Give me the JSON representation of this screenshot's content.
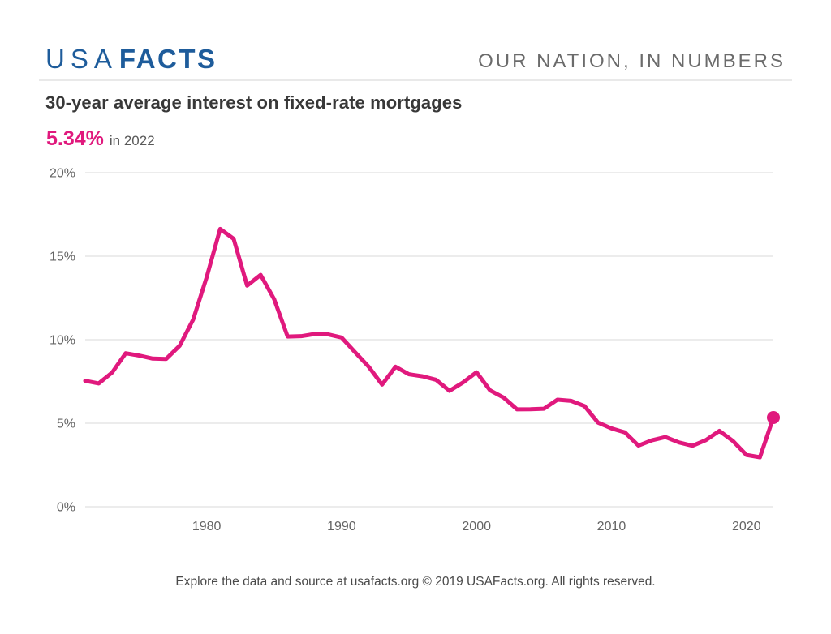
{
  "header": {
    "logo": {
      "part1": "USA",
      "part2": "FACTS"
    },
    "tagline": "OUR NATION, IN NUMBERS"
  },
  "chart": {
    "title": "30-year average interest on fixed-rate mortgages",
    "stat_value": "5.34%",
    "stat_context": "in 2022"
  },
  "chart_data": {
    "type": "line",
    "title": "30-year average interest on fixed-rate mortgages",
    "unit": "%",
    "x": [
      1971,
      1972,
      1973,
      1974,
      1975,
      1976,
      1977,
      1978,
      1979,
      1980,
      1981,
      1982,
      1983,
      1984,
      1985,
      1986,
      1987,
      1988,
      1989,
      1990,
      1991,
      1992,
      1993,
      1994,
      1995,
      1996,
      1997,
      1998,
      1999,
      2000,
      2001,
      2002,
      2003,
      2004,
      2005,
      2006,
      2007,
      2008,
      2009,
      2010,
      2011,
      2012,
      2013,
      2014,
      2015,
      2016,
      2017,
      2018,
      2019,
      2020,
      2021,
      2022
    ],
    "values": [
      7.54,
      7.38,
      8.04,
      9.19,
      9.05,
      8.87,
      8.85,
      9.64,
      11.2,
      13.74,
      16.63,
      16.04,
      13.24,
      13.88,
      12.43,
      10.19,
      10.21,
      10.34,
      10.32,
      10.13,
      9.25,
      8.39,
      7.31,
      8.38,
      7.93,
      7.81,
      7.6,
      6.94,
      7.44,
      8.05,
      6.97,
      6.54,
      5.83,
      5.84,
      5.87,
      6.41,
      6.34,
      6.03,
      5.04,
      4.69,
      4.45,
      3.66,
      3.98,
      4.17,
      3.85,
      3.65,
      3.99,
      4.54,
      3.94,
      3.1,
      2.96,
      5.34
    ],
    "xlabel": "",
    "ylabel": "",
    "xlim": [
      1971,
      2022
    ],
    "ylim": [
      0,
      20
    ],
    "y_ticks": [
      {
        "value": 0,
        "label": "0%"
      },
      {
        "value": 5,
        "label": "5%"
      },
      {
        "value": 10,
        "label": "10%"
      },
      {
        "value": 15,
        "label": "15%"
      },
      {
        "value": 20,
        "label": "20%"
      }
    ],
    "x_ticks": [
      {
        "value": 1980,
        "label": "1980"
      },
      {
        "value": 1990,
        "label": "1990"
      },
      {
        "value": 2000,
        "label": "2000"
      },
      {
        "value": 2010,
        "label": "2010"
      },
      {
        "value": 2020,
        "label": "2020"
      }
    ],
    "grid": true,
    "legend": false,
    "line_color": "#e0197d",
    "end_marker": {
      "x": 2022,
      "y": 5.34
    }
  },
  "footer": {
    "text": "Explore the data and source at usafacts.org © 2019 USAFacts.org. All rights reserved."
  },
  "colors": {
    "brand_blue": "#1e5c9b",
    "accent_pink": "#e0197d",
    "grid": "#ececec",
    "axis_text": "#646464"
  }
}
